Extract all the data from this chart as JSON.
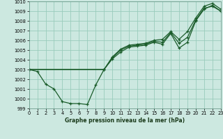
{
  "title": "Graphe pression niveau de la mer (hPa)",
  "bg_color": "#cce8e0",
  "grid_color": "#99ccbb",
  "line_color": "#1a5c2a",
  "x_min": 0,
  "x_max": 23,
  "y_min": 999,
  "y_max": 1010,
  "x_ticks": [
    0,
    1,
    2,
    3,
    4,
    5,
    6,
    7,
    8,
    9,
    10,
    11,
    12,
    13,
    14,
    15,
    16,
    17,
    18,
    19,
    20,
    21,
    22,
    23
  ],
  "y_ticks": [
    999,
    1000,
    1001,
    1002,
    1003,
    1004,
    1005,
    1006,
    1007,
    1008,
    1009,
    1010
  ],
  "series_bottom": {
    "x": [
      0,
      1,
      2,
      3,
      4,
      5,
      6,
      7,
      8,
      9,
      10,
      11,
      12,
      13,
      14,
      15,
      16,
      17,
      18,
      19,
      20,
      21,
      22,
      23
    ],
    "y": [
      1003.0,
      1002.8,
      1001.5,
      1001.0,
      999.7,
      999.5,
      999.5,
      999.4,
      1001.4,
      1003.0,
      1004.1,
      1004.8,
      1005.3,
      1005.4,
      1005.5,
      1005.8,
      1005.6,
      1006.7,
      1005.2,
      1005.8,
      1008.0,
      1009.2,
      1009.6,
      1009.0
    ]
  },
  "series_mid": {
    "x": [
      0,
      9,
      10,
      11,
      12,
      13,
      14,
      15,
      16,
      17,
      18,
      19,
      20,
      21,
      22,
      23
    ],
    "y": [
      1003.0,
      1003.0,
      1004.2,
      1005.0,
      1005.4,
      1005.5,
      1005.6,
      1005.9,
      1005.8,
      1006.8,
      1005.7,
      1006.3,
      1008.1,
      1009.3,
      1009.5,
      1009.0
    ]
  },
  "series_top": {
    "x": [
      0,
      9,
      10,
      11,
      12,
      13,
      14,
      15,
      16,
      17,
      18,
      19,
      20,
      21,
      22,
      23
    ],
    "y": [
      1003.0,
      1003.0,
      1004.3,
      1005.1,
      1005.5,
      1005.6,
      1005.7,
      1006.0,
      1006.1,
      1006.9,
      1006.1,
      1006.9,
      1008.3,
      1009.5,
      1009.8,
      1009.2
    ]
  },
  "label_fontsize": 5.5,
  "tick_fontsize": 4.8
}
